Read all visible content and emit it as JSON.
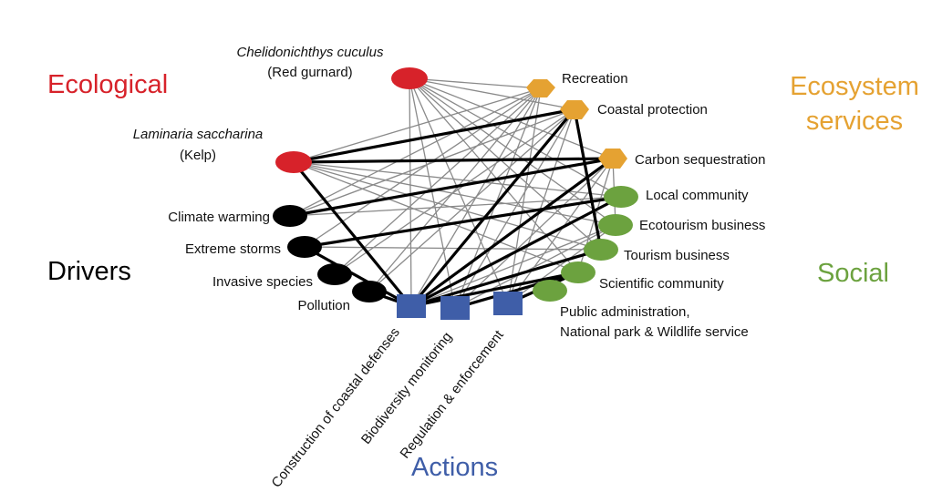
{
  "categories": {
    "ecological": "Ecological",
    "ecosystem_services_1": "Ecosystem",
    "ecosystem_services_2": "services",
    "drivers": "Drivers",
    "social": "Social",
    "actions": "Actions"
  },
  "colors": {
    "ecological": "#d7222a",
    "ecosystem_services": "#e5a232",
    "drivers": "#000000",
    "social": "#6ca23f",
    "actions": "#3f5ea8",
    "thin_link": "#8a8a8a",
    "strong_link": "#000000"
  },
  "nodes": {
    "red_gurnard": {
      "name": "Chelidonichthys cuculus",
      "common": "(Red gurnard)"
    },
    "kelp": {
      "name": "Laminaria saccharina",
      "common": "(Kelp)"
    },
    "recreation": "Recreation",
    "coastal_protection": "Coastal protection",
    "carbon_sequestration": "Carbon sequestration",
    "local_community": "Local community",
    "ecotourism_business": "Ecotourism business",
    "tourism_business": "Tourism business",
    "scientific_community": "Scientific community",
    "public_administration_1": "Public administration,",
    "public_administration_2": "National park & Wildlife service",
    "climate_warming": "Climate warming",
    "extreme_storms": "Extreme storms",
    "invasive_species": "Invasive species",
    "pollution": "Pollution",
    "construction": "Construction of coastal defenses",
    "biodiversity_monitoring": "Biodiversity monitoring",
    "regulation": "Regulation & enforcement"
  },
  "links": {
    "thin": [
      [
        "gurnard",
        "recreation"
      ],
      [
        "gurnard",
        "coastal"
      ],
      [
        "gurnard",
        "carbon"
      ],
      [
        "gurnard",
        "local"
      ],
      [
        "gurnard",
        "ecotourism"
      ],
      [
        "gurnard",
        "tourism"
      ],
      [
        "gurnard",
        "scientific"
      ],
      [
        "gurnard",
        "construction"
      ],
      [
        "gurnard",
        "monitoring"
      ],
      [
        "gurnard",
        "regulation"
      ],
      [
        "kelp",
        "recreation"
      ],
      [
        "kelp",
        "coastal"
      ],
      [
        "kelp",
        "local"
      ],
      [
        "kelp",
        "ecotourism"
      ],
      [
        "kelp",
        "tourism"
      ],
      [
        "kelp",
        "scientific"
      ],
      [
        "climate",
        "recreation"
      ],
      [
        "climate",
        "coastal"
      ],
      [
        "climate",
        "carbon"
      ],
      [
        "climate",
        "local"
      ],
      [
        "storms",
        "recreation"
      ],
      [
        "storms",
        "local"
      ],
      [
        "storms",
        "tourism"
      ],
      [
        "invasive",
        "recreation"
      ],
      [
        "invasive",
        "coastal"
      ],
      [
        "pollution",
        "recreation"
      ],
      [
        "pollution",
        "coastal"
      ],
      [
        "construction",
        "recreation"
      ],
      [
        "construction",
        "ecotourism"
      ],
      [
        "monitoring",
        "recreation"
      ],
      [
        "monitoring",
        "coastal"
      ],
      [
        "monitoring",
        "carbon"
      ],
      [
        "monitoring",
        "ecotourism"
      ],
      [
        "monitoring",
        "scientific"
      ],
      [
        "regulation",
        "recreation"
      ],
      [
        "regulation",
        "coastal"
      ],
      [
        "regulation",
        "carbon"
      ],
      [
        "regulation",
        "ecotourism"
      ],
      [
        "scientific",
        "carbon"
      ],
      [
        "ecotourism",
        "carbon"
      ]
    ],
    "strong": [
      [
        "kelp",
        "coastal"
      ],
      [
        "kelp",
        "carbon"
      ],
      [
        "kelp",
        "construction"
      ],
      [
        "climate",
        "carbon"
      ],
      [
        "storms",
        "local"
      ],
      [
        "storms",
        "construction"
      ],
      [
        "pollution",
        "construction"
      ],
      [
        "construction",
        "coastal"
      ],
      [
        "construction",
        "carbon"
      ],
      [
        "construction",
        "local"
      ],
      [
        "construction",
        "tourism"
      ],
      [
        "construction",
        "scientific"
      ],
      [
        "monitoring",
        "scientific"
      ],
      [
        "regulation",
        "scientific"
      ],
      [
        "coastal",
        "tourism"
      ]
    ]
  }
}
